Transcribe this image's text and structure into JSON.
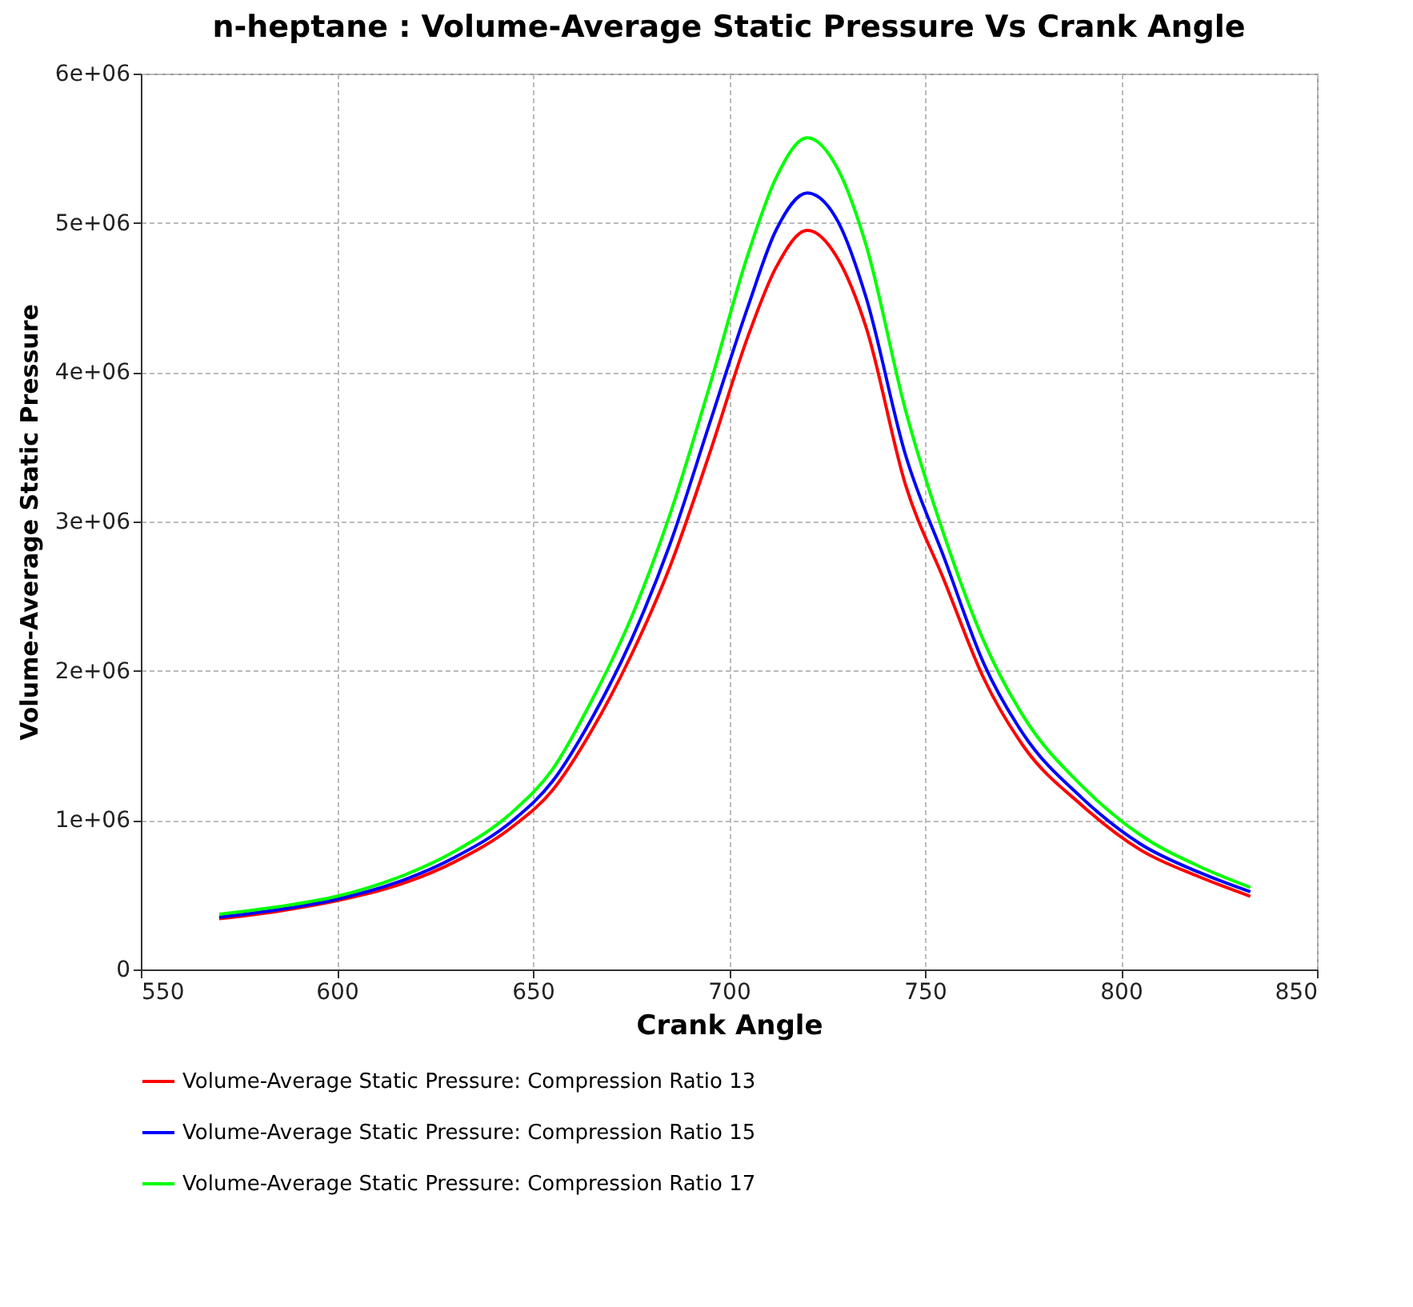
{
  "chart_data": {
    "type": "line",
    "title": "n-heptane : Volume-Average Static Pressure Vs Crank Angle",
    "xlabel": "Crank Angle",
    "ylabel": "Volume-Average Static Pressure",
    "x": [
      570,
      585,
      600,
      615,
      630,
      645,
      655,
      665,
      675,
      685,
      695,
      705,
      712,
      720,
      728,
      735,
      745,
      755,
      765,
      775,
      790,
      805,
      820,
      833
    ],
    "series": [
      {
        "name": "Volume-Average Static Pressure: Compression Ratio 13",
        "color": "#ff0000",
        "values": [
          340000,
          390000,
          460000,
          560000,
          720000,
          960000,
          1200000,
          1600000,
          2100000,
          2700000,
          3450000,
          4250000,
          4700000,
          4950000,
          4750000,
          4300000,
          3250000,
          2600000,
          1950000,
          1500000,
          1100000,
          800000,
          620000,
          490000
        ]
      },
      {
        "name": "Volume-Average Static Pressure: Compression Ratio 15",
        "color": "#0000ff",
        "values": [
          350000,
          400000,
          470000,
          580000,
          750000,
          1000000,
          1260000,
          1680000,
          2200000,
          2850000,
          3650000,
          4450000,
          4950000,
          5200000,
          5000000,
          4500000,
          3450000,
          2750000,
          2050000,
          1580000,
          1150000,
          840000,
          650000,
          520000
        ]
      },
      {
        "name": "Volume-Average Static Pressure: Compression Ratio 17",
        "color": "#00ff00",
        "values": [
          370000,
          420000,
          490000,
          610000,
          790000,
          1060000,
          1340000,
          1800000,
          2350000,
          3050000,
          3900000,
          4800000,
          5300000,
          5570000,
          5350000,
          4850000,
          3750000,
          2900000,
          2200000,
          1700000,
          1230000,
          900000,
          690000,
          550000
        ]
      }
    ],
    "xlim": [
      550,
      850
    ],
    "xticks": [
      550,
      600,
      650,
      700,
      750,
      800,
      850
    ],
    "ylim": [
      0,
      6000000
    ],
    "yticks": [
      {
        "value": 0,
        "label": "0"
      },
      {
        "value": 1000000,
        "label": "1e+06"
      },
      {
        "value": 2000000,
        "label": "2e+06"
      },
      {
        "value": 3000000,
        "label": "3e+06"
      },
      {
        "value": 4000000,
        "label": "4e+06"
      },
      {
        "value": 5000000,
        "label": "5e+06"
      },
      {
        "value": 6000000,
        "label": "6e+06"
      }
    ],
    "grid": true,
    "legend": "bottom",
    "marker": "none",
    "line_style": "solid"
  }
}
